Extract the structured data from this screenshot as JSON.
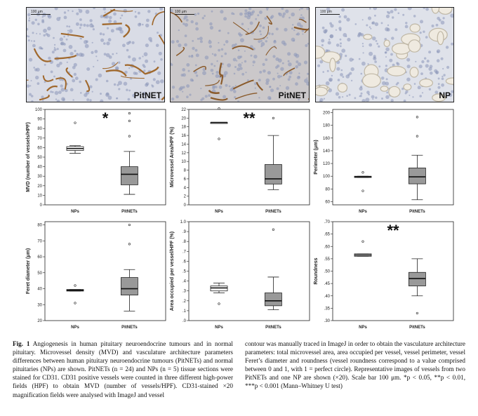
{
  "panels": [
    {
      "label": "PitNET",
      "scale": "100 μm",
      "bg": "#d9dce6",
      "vessel": "#a0682c"
    },
    {
      "label": "PitNET",
      "scale": "100 μm",
      "bg": "#cbc8ca",
      "vessel": "#8a5a2a"
    },
    {
      "label": "NP",
      "scale": "100 μm",
      "bg": "#dfe2ea",
      "vessel": "#bfb7a5"
    }
  ],
  "colors": {
    "box_fill": "#999999",
    "np_box_fill": "#ffffff",
    "stroke": "#222222"
  },
  "chart_data": [
    {
      "type": "box",
      "ylabel": "MVD (number of vessels/HPF)",
      "categories": [
        "NPs",
        "PitNETs"
      ],
      "ylim": [
        0,
        100
      ],
      "yticks": [
        0,
        10,
        20,
        30,
        40,
        50,
        60,
        70,
        80,
        90,
        100
      ],
      "ytick_labels": [
        "0",
        "10",
        "20",
        "30",
        "40",
        "50",
        "60",
        "70",
        "80",
        "90",
        "100"
      ],
      "significance": "*",
      "boxes": [
        {
          "whisker_low": 54,
          "q1": 57,
          "median": 59,
          "q3": 61,
          "whisker_high": 62,
          "outliers": [
            86
          ]
        },
        {
          "whisker_low": 11,
          "q1": 21,
          "median": 32,
          "q3": 40,
          "whisker_high": 56,
          "outliers": [
            72,
            88,
            96
          ]
        }
      ]
    },
    {
      "type": "box",
      "ylabel": "Microvessel Area/HPF (%)",
      "categories": [
        "NPs",
        "PitNETs"
      ],
      "ylim": [
        0,
        22
      ],
      "yticks": [
        0,
        2,
        4,
        6,
        8,
        10,
        12,
        14,
        16,
        18,
        20,
        22
      ],
      "ytick_labels": [
        "0",
        "2",
        "4",
        "6",
        "8",
        "10",
        "12",
        "14",
        "16",
        "18",
        "20",
        "22"
      ],
      "significance": "**",
      "boxes": [
        {
          "whisker_low": 19,
          "q1": 19,
          "median": 19,
          "q3": 19,
          "whisker_high": 19,
          "outliers": [
            15.2,
            22.2
          ]
        },
        {
          "whisker_low": 3.5,
          "q1": 4.8,
          "median": 6,
          "q3": 9.3,
          "whisker_high": 16,
          "outliers": [
            20
          ]
        }
      ]
    },
    {
      "type": "box",
      "ylabel": "Perimeter (μm)",
      "categories": [
        "NPs",
        "PitNETs"
      ],
      "ylim": [
        55,
        205
      ],
      "yticks": [
        60,
        80,
        100,
        120,
        140,
        160,
        180,
        200
      ],
      "ytick_labels": [
        "60",
        "80",
        "100",
        "120",
        "140",
        "160",
        "180",
        "200"
      ],
      "significance": "",
      "boxes": [
        {
          "whisker_low": 98,
          "q1": 98,
          "median": 99,
          "q3": 100,
          "whisker_high": 100,
          "outliers": [
            77,
            106
          ]
        },
        {
          "whisker_low": 63,
          "q1": 88,
          "median": 99,
          "q3": 113,
          "whisker_high": 133,
          "outliers": [
            163,
            193
          ]
        }
      ]
    },
    {
      "type": "box",
      "ylabel": "Feret diameter (μm)",
      "categories": [
        "NPs",
        "PitNETs"
      ],
      "ylim": [
        20,
        82
      ],
      "yticks": [
        20,
        30,
        40,
        50,
        60,
        70,
        80
      ],
      "ytick_labels": [
        "20",
        "30",
        "40",
        "50",
        "60",
        "70",
        "80"
      ],
      "significance": "",
      "boxes": [
        {
          "whisker_low": 38.5,
          "q1": 38.5,
          "median": 39,
          "q3": 39.5,
          "whisker_high": 39.5,
          "outliers": [
            31,
            42
          ]
        },
        {
          "whisker_low": 26,
          "q1": 36,
          "median": 40,
          "q3": 47,
          "whisker_high": 52,
          "outliers": [
            68,
            80
          ]
        }
      ]
    },
    {
      "type": "box",
      "ylabel": "Area occupied per vessel/HPF (%)",
      "categories": [
        "NPs",
        "PitNETs"
      ],
      "ylim": [
        0,
        1.0
      ],
      "yticks": [
        0,
        0.1,
        0.2,
        0.3,
        0.4,
        0.5,
        0.6,
        0.7,
        0.8,
        0.9,
        1.0
      ],
      "ytick_labels": [
        ".0",
        ".1",
        ".2",
        ".3",
        ".4",
        ".5",
        ".6",
        ".7",
        ".8",
        ".9",
        "1.0"
      ],
      "significance": "",
      "boxes": [
        {
          "whisker_low": 0.28,
          "q1": 0.3,
          "median": 0.33,
          "q3": 0.35,
          "whisker_high": 0.38,
          "outliers": [
            0.17
          ]
        },
        {
          "whisker_low": 0.11,
          "q1": 0.15,
          "median": 0.2,
          "q3": 0.28,
          "whisker_high": 0.44,
          "outliers": [
            0.92
          ]
        }
      ]
    },
    {
      "type": "box",
      "ylabel": "Roundness",
      "categories": [
        "NPs",
        "PitNETs"
      ],
      "ylim": [
        0.3,
        0.7
      ],
      "yticks": [
        0.3,
        0.35,
        0.4,
        0.45,
        0.5,
        0.55,
        0.6,
        0.65,
        0.7
      ],
      "ytick_labels": [
        ".30",
        ".35",
        ".40",
        ".45",
        ".50",
        ".55",
        ".60",
        ".65",
        ".70"
      ],
      "significance": "**",
      "boxes": [
        {
          "whisker_low": 0.56,
          "q1": 0.56,
          "median": 0.565,
          "q3": 0.57,
          "whisker_high": 0.57,
          "outliers": [
            0.62
          ]
        },
        {
          "whisker_low": 0.4,
          "q1": 0.44,
          "median": 0.47,
          "q3": 0.495,
          "whisker_high": 0.55,
          "outliers": [
            0.33
          ]
        }
      ]
    }
  ],
  "caption": {
    "fig_label": "Fig. 1",
    "left_text": "Angiogenesis in human pituitary neuroendocrine tumours and in normal pituitary. Microvessel density (MVD) and vasculature architecture parameters differences between human pituitary neuroendocrine tumours (PitNETs) and normal pituitaries (NPs) are shown. PitNETs (n = 24) and NPs (n = 5) tissue sections were stained for CD31. CD31 positive vessels were counted in three different high-power fields (HPF) to obtain MVD (number of vessels/HPF). CD31-stained ×20 magnification fields were analysed with ImageJ and vessel",
    "right_text": "contour was manually traced in ImageJ in order to obtain the vasculature architecture parameters: total microvessel area, area occupied per vessel, vessel perimeter, vessel Feret’s diameter and roundness (vessel roundness correspond to a value comprised between 0 and 1, with 1 = perfect circle). Representative images of vessels from two PitNETs and one NP are shown (×20). Scale bar 100 μm. *p < 0.05, **p < 0.01, ***p < 0.001 (Mann–Whitney U test)"
  }
}
